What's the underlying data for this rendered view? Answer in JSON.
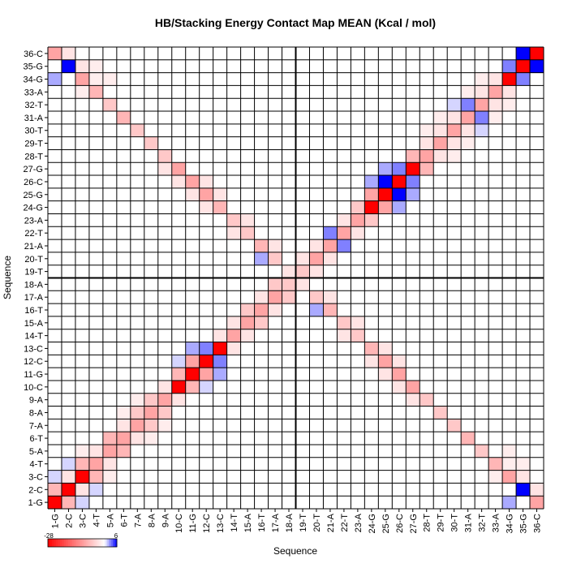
{
  "chart_data": {
    "type": "heatmap",
    "title": "HB/Stacking Energy Contact Map MEAN (Kcal / mol)",
    "xlabel": "Sequence",
    "ylabel": "Sequence",
    "x_labels": [
      "1-G",
      "2-C",
      "3-C",
      "4-T",
      "5-A",
      "6-T",
      "7-A",
      "8-A",
      "9-A",
      "10-C",
      "11-G",
      "12-C",
      "13-C",
      "14-T",
      "15-A",
      "16-T",
      "17-A",
      "18-A",
      "19-T",
      "20-T",
      "21-A",
      "22-T",
      "23-A",
      "24-G",
      "25-G",
      "26-C",
      "27-G",
      "28-T",
      "29-T",
      "30-T",
      "31-A",
      "32-T",
      "33-A",
      "34-G",
      "35-G",
      "36-C"
    ],
    "y_labels": [
      "1-G",
      "2-C",
      "3-C",
      "4-T",
      "5-A",
      "6-T",
      "7-A",
      "8-A",
      "9-A",
      "10-C",
      "11-G",
      "12-C",
      "13-C",
      "14-T",
      "15-A",
      "16-T",
      "17-A",
      "18-A",
      "19-T",
      "20-T",
      "21-A",
      "22-T",
      "23-A",
      "24-G",
      "25-G",
      "26-C",
      "27-G",
      "28-T",
      "29-T",
      "30-T",
      "31-A",
      "32-T",
      "33-A",
      "34-G",
      "35-G",
      "36-C"
    ],
    "colorscale": {
      "min": -28,
      "max": 6,
      "min_label": "-28",
      "max_label": "6",
      "low_color": "#ff0000",
      "mid_color": "#ffffff",
      "high_color": "#0000ff"
    },
    "divider_after_index": 18,
    "cells": [
      [
        1,
        1,
        -28
      ],
      [
        2,
        2,
        -28
      ],
      [
        34,
        34,
        -28
      ],
      [
        35,
        35,
        -28
      ],
      [
        36,
        36,
        -28
      ],
      [
        3,
        3,
        -28
      ],
      [
        4,
        4,
        -10
      ],
      [
        5,
        5,
        -10
      ],
      [
        6,
        6,
        -10
      ],
      [
        7,
        7,
        -10
      ],
      [
        8,
        8,
        -10
      ],
      [
        9,
        9,
        -10
      ],
      [
        10,
        10,
        -28
      ],
      [
        11,
        11,
        -28
      ],
      [
        12,
        12,
        -28
      ],
      [
        13,
        13,
        -28
      ],
      [
        14,
        14,
        -10
      ],
      [
        15,
        15,
        -10
      ],
      [
        16,
        16,
        -10
      ],
      [
        17,
        17,
        -10
      ],
      [
        18,
        18,
        -6
      ],
      [
        19,
        19,
        -6
      ],
      [
        20,
        20,
        -10
      ],
      [
        21,
        21,
        -10
      ],
      [
        22,
        22,
        -10
      ],
      [
        23,
        23,
        -10
      ],
      [
        24,
        24,
        -28
      ],
      [
        25,
        25,
        -28
      ],
      [
        26,
        26,
        -28
      ],
      [
        27,
        27,
        -28
      ],
      [
        28,
        28,
        -10
      ],
      [
        29,
        29,
        -10
      ],
      [
        30,
        30,
        -10
      ],
      [
        31,
        31,
        -10
      ],
      [
        32,
        32,
        -10
      ],
      [
        33,
        33,
        -10
      ],
      [
        1,
        2,
        -8
      ],
      [
        2,
        1,
        -8
      ],
      [
        2,
        3,
        -3
      ],
      [
        3,
        2,
        -3
      ],
      [
        3,
        4,
        -8
      ],
      [
        4,
        3,
        -8
      ],
      [
        4,
        5,
        -3
      ],
      [
        5,
        4,
        -3
      ],
      [
        5,
        6,
        -8
      ],
      [
        6,
        5,
        -8
      ],
      [
        6,
        7,
        -3
      ],
      [
        7,
        6,
        -3
      ],
      [
        7,
        8,
        -6
      ],
      [
        8,
        7,
        -6
      ],
      [
        8,
        9,
        -6
      ],
      [
        9,
        8,
        -6
      ],
      [
        9,
        10,
        -3
      ],
      [
        10,
        9,
        -3
      ],
      [
        10,
        11,
        -8
      ],
      [
        11,
        10,
        -8
      ],
      [
        11,
        12,
        -10
      ],
      [
        12,
        11,
        -10
      ],
      [
        12,
        13,
        3
      ],
      [
        13,
        12,
        3
      ],
      [
        13,
        14,
        -3
      ],
      [
        14,
        13,
        -3
      ],
      [
        14,
        15,
        -3
      ],
      [
        15,
        14,
        -3
      ],
      [
        15,
        16,
        -6
      ],
      [
        16,
        15,
        -6
      ],
      [
        16,
        17,
        -3
      ],
      [
        17,
        16,
        -3
      ],
      [
        17,
        18,
        -6
      ],
      [
        18,
        17,
        -6
      ],
      [
        18,
        19,
        -3
      ],
      [
        19,
        18,
        -3
      ],
      [
        19,
        20,
        -3
      ],
      [
        20,
        19,
        -3
      ],
      [
        20,
        21,
        -3
      ],
      [
        21,
        20,
        -3
      ],
      [
        21,
        22,
        3
      ],
      [
        22,
        21,
        3
      ],
      [
        22,
        23,
        -3
      ],
      [
        23,
        22,
        -3
      ],
      [
        23,
        24,
        -6
      ],
      [
        24,
        23,
        -6
      ],
      [
        24,
        25,
        -10
      ],
      [
        25,
        24,
        -10
      ],
      [
        25,
        26,
        6
      ],
      [
        26,
        25,
        6
      ],
      [
        26,
        27,
        3
      ],
      [
        27,
        26,
        3
      ],
      [
        27,
        28,
        -8
      ],
      [
        28,
        27,
        -8
      ],
      [
        28,
        29,
        -3
      ],
      [
        29,
        28,
        -3
      ],
      [
        29,
        30,
        -3
      ],
      [
        30,
        29,
        -3
      ],
      [
        30,
        31,
        -3
      ],
      [
        31,
        30,
        -3
      ],
      [
        31,
        32,
        3
      ],
      [
        32,
        31,
        3
      ],
      [
        32,
        33,
        -3
      ],
      [
        33,
        32,
        -3
      ],
      [
        33,
        34,
        -3
      ],
      [
        34,
        33,
        -3
      ],
      [
        34,
        35,
        3
      ],
      [
        35,
        34,
        3
      ],
      [
        35,
        36,
        6
      ],
      [
        36,
        35,
        6
      ],
      [
        1,
        36,
        -10
      ],
      [
        36,
        1,
        -10
      ],
      [
        2,
        35,
        6
      ],
      [
        35,
        2,
        6
      ],
      [
        3,
        34,
        -10
      ],
      [
        34,
        3,
        -10
      ],
      [
        4,
        33,
        -8
      ],
      [
        33,
        4,
        -8
      ],
      [
        5,
        32,
        -6
      ],
      [
        32,
        5,
        -6
      ],
      [
        6,
        31,
        -8
      ],
      [
        31,
        6,
        -8
      ],
      [
        7,
        30,
        -6
      ],
      [
        30,
        7,
        -6
      ],
      [
        8,
        29,
        -6
      ],
      [
        29,
        8,
        -6
      ],
      [
        9,
        28,
        -6
      ],
      [
        28,
        9,
        -6
      ],
      [
        10,
        27,
        -10
      ],
      [
        27,
        10,
        -10
      ],
      [
        11,
        26,
        -10
      ],
      [
        26,
        11,
        -10
      ],
      [
        12,
        25,
        -10
      ],
      [
        25,
        12,
        -10
      ],
      [
        13,
        24,
        -8
      ],
      [
        24,
        13,
        -8
      ],
      [
        14,
        23,
        -6
      ],
      [
        23,
        14,
        -6
      ],
      [
        15,
        22,
        -6
      ],
      [
        22,
        15,
        -6
      ],
      [
        16,
        21,
        -8
      ],
      [
        21,
        16,
        -8
      ],
      [
        17,
        20,
        -6
      ],
      [
        20,
        17,
        -6
      ],
      [
        18,
        19,
        -3
      ],
      [
        19,
        18,
        -3
      ],
      [
        1,
        3,
        1
      ],
      [
        3,
        1,
        1
      ],
      [
        2,
        4,
        1
      ],
      [
        4,
        2,
        1
      ],
      [
        3,
        5,
        -2
      ],
      [
        5,
        3,
        -2
      ],
      [
        10,
        12,
        1
      ],
      [
        12,
        10,
        1
      ],
      [
        11,
        13,
        2
      ],
      [
        13,
        11,
        2
      ],
      [
        24,
        26,
        2
      ],
      [
        26,
        24,
        2
      ],
      [
        25,
        27,
        2
      ],
      [
        27,
        25,
        2
      ],
      [
        1,
        34,
        2
      ],
      [
        34,
        1,
        2
      ],
      [
        2,
        36,
        -3
      ],
      [
        36,
        2,
        -3
      ],
      [
        3,
        35,
        -3
      ],
      [
        35,
        3,
        -3
      ],
      [
        4,
        34,
        -2
      ],
      [
        34,
        4,
        -2
      ],
      [
        9,
        27,
        -3
      ],
      [
        27,
        9,
        -3
      ],
      [
        10,
        26,
        -3
      ],
      [
        26,
        10,
        -3
      ],
      [
        11,
        25,
        -3
      ],
      [
        25,
        11,
        -3
      ],
      [
        12,
        26,
        -3
      ],
      [
        26,
        12,
        -3
      ],
      [
        13,
        25,
        -3
      ],
      [
        25,
        13,
        -3
      ],
      [
        12,
        24,
        -3
      ],
      [
        24,
        12,
        -3
      ],
      [
        14,
        22,
        -3
      ],
      [
        22,
        14,
        -3
      ],
      [
        15,
        23,
        -3
      ],
      [
        23,
        15,
        -3
      ],
      [
        16,
        20,
        2
      ],
      [
        20,
        16,
        2
      ],
      [
        17,
        21,
        -3
      ],
      [
        21,
        17,
        -3
      ],
      [
        3,
        33,
        -2
      ],
      [
        33,
        3,
        -2
      ],
      [
        4,
        35,
        -2
      ],
      [
        35,
        4,
        -2
      ],
      [
        5,
        34,
        -2
      ],
      [
        34,
        5,
        -2
      ],
      [
        28,
        30,
        -2
      ],
      [
        30,
        28,
        -2
      ],
      [
        29,
        31,
        -2
      ],
      [
        31,
        29,
        -2
      ],
      [
        6,
        8,
        -2
      ],
      [
        8,
        6,
        -2
      ],
      [
        7,
        9,
        -2
      ],
      [
        9,
        7,
        -2
      ],
      [
        30,
        32,
        1
      ],
      [
        32,
        30,
        1
      ],
      [
        31,
        33,
        -2
      ],
      [
        33,
        31,
        -2
      ],
      [
        32,
        34,
        -2
      ],
      [
        34,
        32,
        -2
      ]
    ]
  }
}
